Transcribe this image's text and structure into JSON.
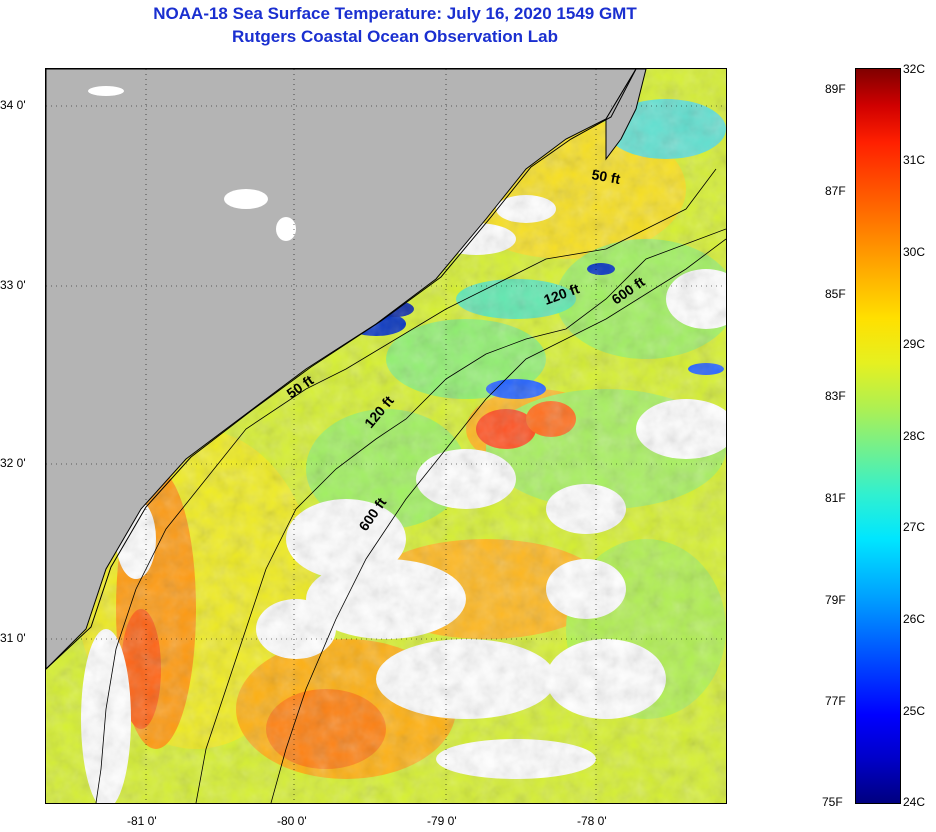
{
  "title": {
    "line1": "NOAA-18 Sea Surface Temperature:  July 16, 2020 1549 GMT",
    "line2": "Rutgers Coastal Ocean Observation Lab"
  },
  "map": {
    "latitude_labels": [
      "34 0'",
      "33 0'",
      "32 0'",
      "31 0'"
    ],
    "longitude_labels": [
      "-81 0'",
      "-80 0'",
      "-79 0'",
      "-78 0'"
    ],
    "depth_contour_labels": [
      {
        "text": "50 ft"
      },
      {
        "text": "120 ft"
      },
      {
        "text": "600 ft"
      },
      {
        "text": "50 ft"
      },
      {
        "text": "120 ft"
      },
      {
        "text": "600 ft"
      }
    ],
    "colors": {
      "land": "#b4b4b4",
      "cloud": "#ffffff",
      "coast": "#000000"
    }
  },
  "colorbar": {
    "fahrenheit_labels": [
      "89F",
      "87F",
      "85F",
      "83F",
      "81F",
      "79F",
      "77F",
      "75F"
    ],
    "celsius_labels": [
      "32C",
      "31C",
      "30C",
      "29C",
      "28C",
      "27C",
      "26C",
      "25C",
      "24C"
    ]
  }
}
